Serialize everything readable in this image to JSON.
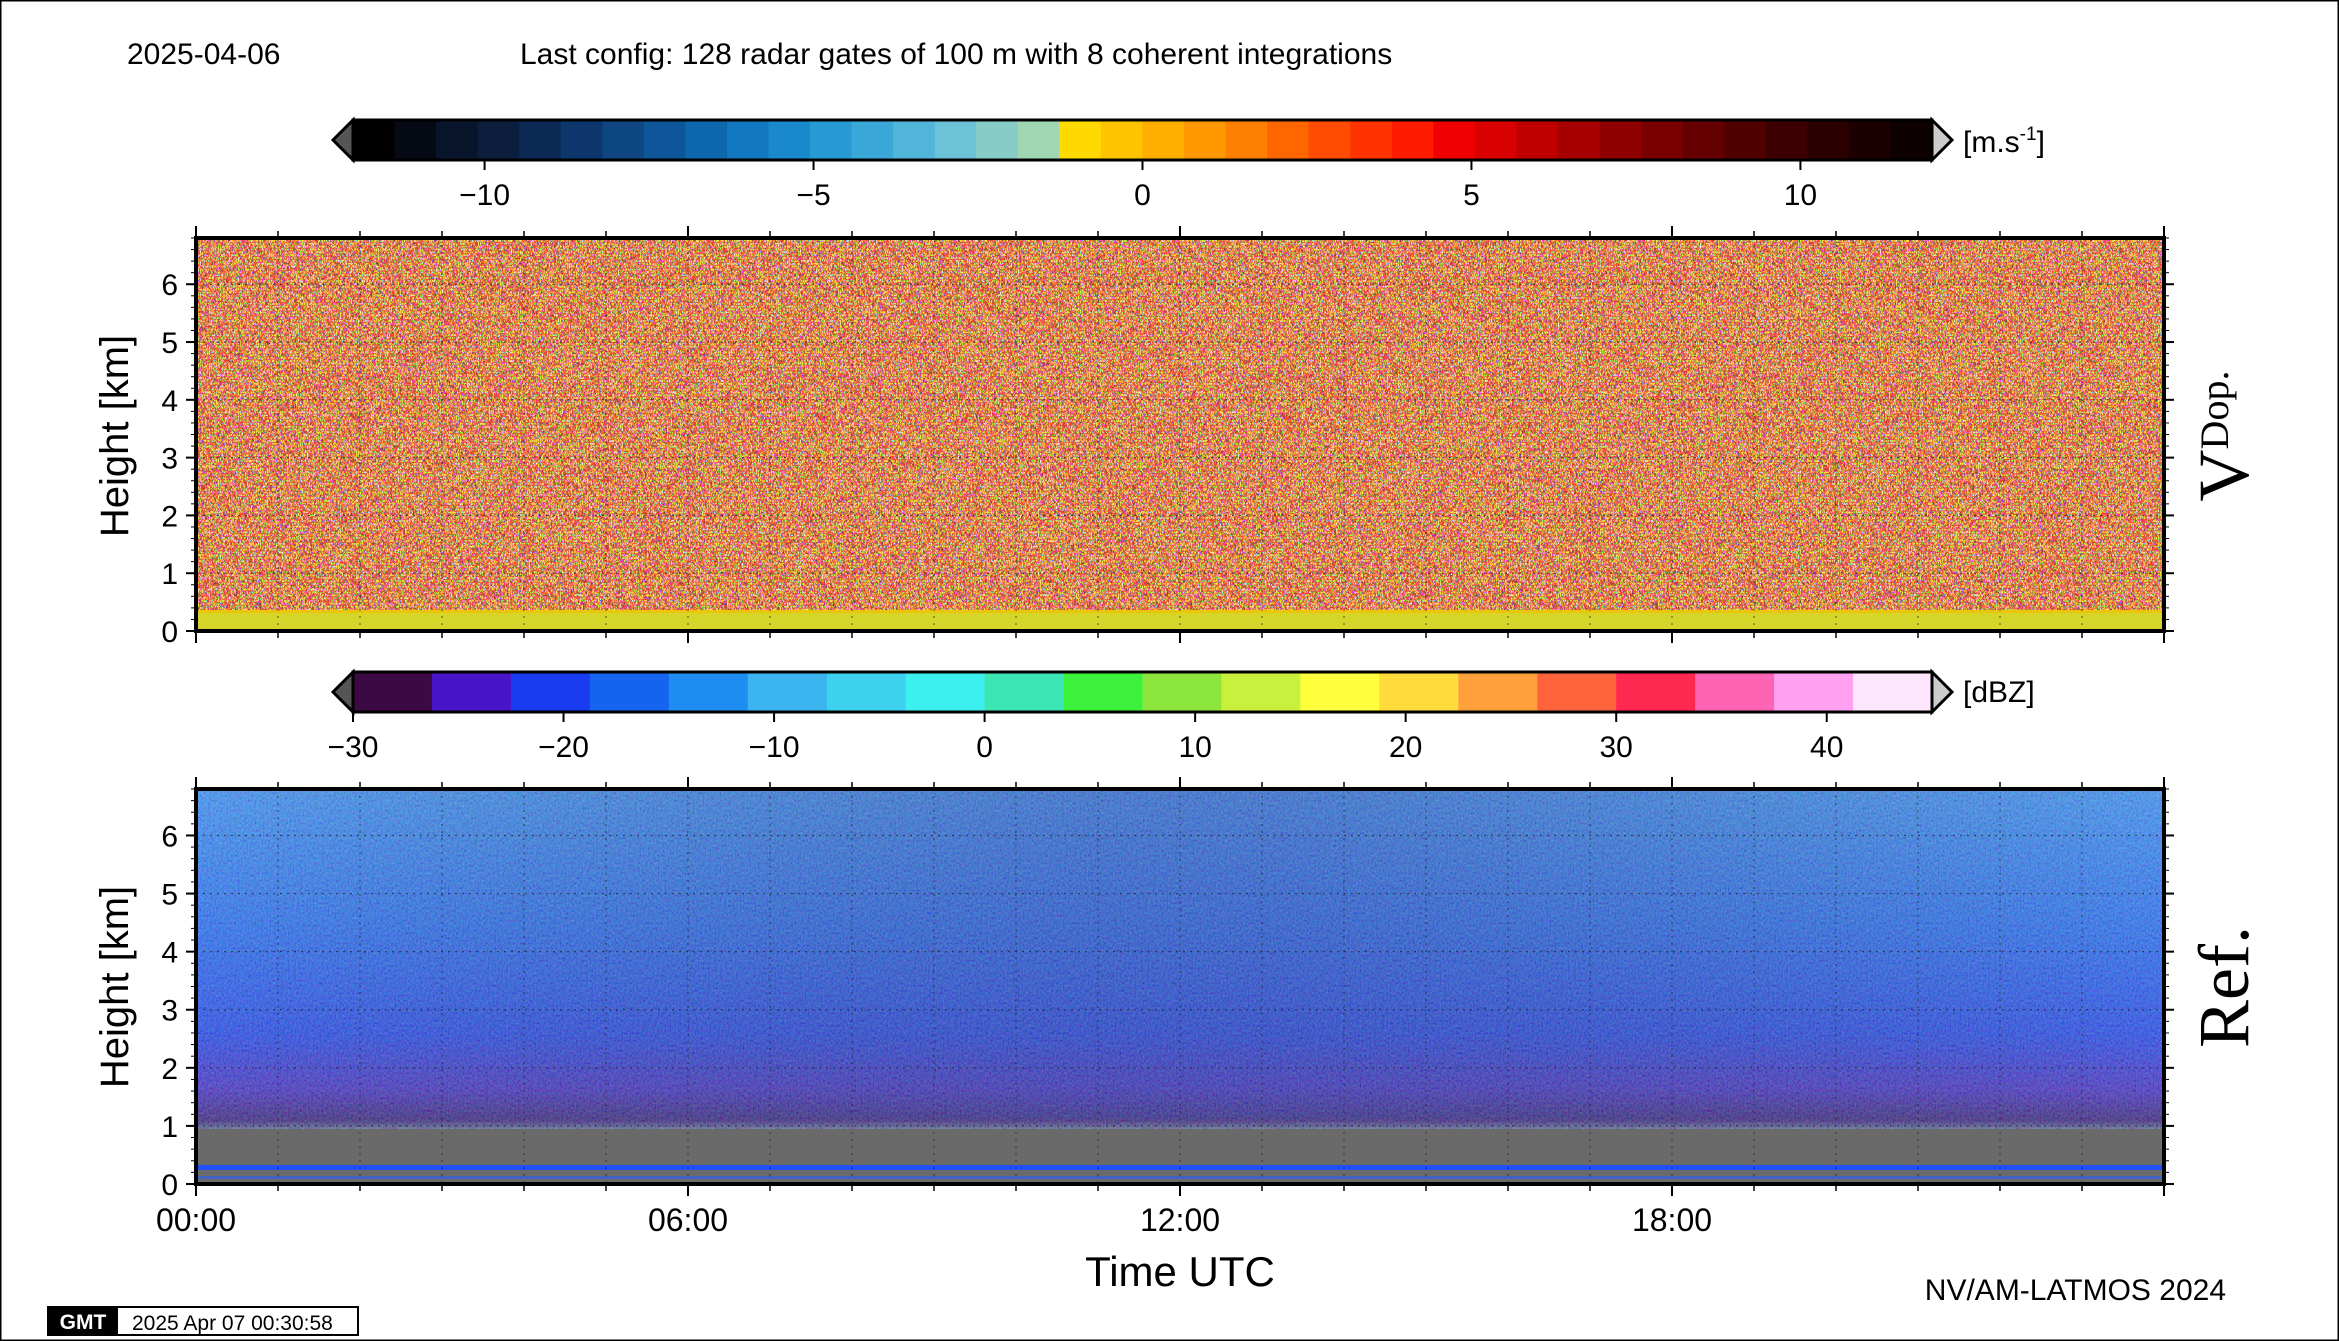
{
  "header": {
    "date": "2025-04-06",
    "config": "Last config: 128 radar gates of 100 m with 8 coherent integrations"
  },
  "footer": {
    "gmt_logo": "GMT",
    "timestamp": "2025 Apr 07 00:30:58",
    "credit": "NV/AM-LATMOS 2024"
  },
  "chart_data": [
    {
      "type": "heatmap",
      "panel_label": "V",
      "panel_label_sub": "Dop.",
      "ylabel": "Height [km]",
      "xlabel": "",
      "xlim": [
        0,
        24
      ],
      "ylim": [
        0,
        6.8
      ],
      "yticks": [
        0,
        1,
        2,
        3,
        4,
        5,
        6
      ],
      "grid": true,
      "colorbar": {
        "unit": "[m.s",
        "unit_sup": "-1",
        "unit_end": "]",
        "range": [
          -12,
          12
        ],
        "ticks": [
          -10,
          -5,
          0,
          5,
          10
        ],
        "tick_labels": [
          "−10",
          "−5",
          "0",
          "5",
          "10"
        ],
        "extend": "both",
        "colors": [
          "#000000",
          "#050a14",
          "#08142a",
          "#0b1e3e",
          "#0c2a55",
          "#0d376c",
          "#0e4683",
          "#0e569a",
          "#0f67ae",
          "#1278bf",
          "#1a89cb",
          "#2799d3",
          "#3aa8d8",
          "#52b6da",
          "#6cc2d6",
          "#88ccc8",
          "#9fd8b0",
          "#ffd900",
          "#ffc400",
          "#ffae00",
          "#ff9800",
          "#ff8000",
          "#ff6600",
          "#ff4c00",
          "#ff3300",
          "#ff1a00",
          "#f00000",
          "#d80000",
          "#c00000",
          "#a80000",
          "#900000",
          "#7a0000",
          "#640000",
          "#500000",
          "#3c0000",
          "#2a0000",
          "#1a0000",
          "#0c0000"
        ]
      },
      "field_description": "noise above 0.3 km; yellow-green near-zero velocity layer below 0.3 km"
    },
    {
      "type": "heatmap",
      "panel_label": "Ref.",
      "ylabel": "Height [km]",
      "xlabel": "Time UTC",
      "xlim": [
        0,
        24
      ],
      "ylim": [
        0,
        6.8
      ],
      "yticks": [
        0,
        1,
        2,
        3,
        4,
        5,
        6
      ],
      "xticks": [
        0,
        6,
        12,
        18
      ],
      "xtick_labels": [
        "00:00",
        "06:00",
        "12:00",
        "18:00"
      ],
      "grid": true,
      "colorbar": {
        "unit": "[dBZ]",
        "range": [
          -30,
          45
        ],
        "ticks": [
          -30,
          -20,
          -10,
          0,
          10,
          20,
          30,
          40
        ],
        "tick_labels": [
          "−30",
          "−20",
          "−10",
          "0",
          "10",
          "20",
          "30",
          "40"
        ],
        "extend": "both",
        "colors": [
          "#3b0a45",
          "#4a14c8",
          "#1a3cf0",
          "#1464f0",
          "#1e8cf0",
          "#3cb4f0",
          "#3cd2f0",
          "#3cf0f0",
          "#3ce6b4",
          "#3cf03c",
          "#8ce63c",
          "#c8f03c",
          "#ffff3c",
          "#ffdc3c",
          "#ffa03c",
          "#ff643c",
          "#ff2850",
          "#ff64b4",
          "#ffa0f0",
          "#ffe6ff"
        ]
      },
      "field_description": "blue noise (about -15 dBZ) aloft, purple (-25 dBZ) near 1 km, gray no-data below 0.3 km"
    }
  ]
}
